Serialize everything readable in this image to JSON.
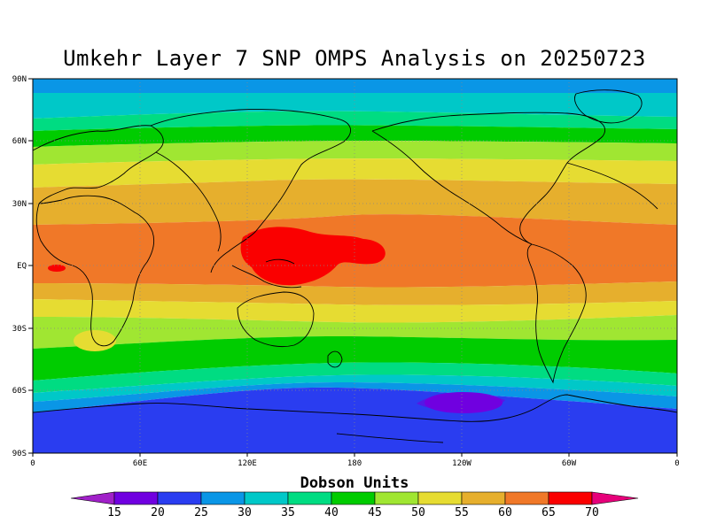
{
  "title": "Umkehr Layer 7 SNP OMPS Analysis on 20250723",
  "map": {
    "lat_ticks": [
      "90N",
      "60N",
      "30N",
      "EQ",
      "30S",
      "60S",
      "90S"
    ],
    "lon_ticks": [
      "0",
      "60E",
      "120E",
      "180",
      "120W",
      "60W",
      "0"
    ],
    "grid": true
  },
  "colorbar": {
    "label": "Dobson Units",
    "ticks": [
      "15",
      "20",
      "25",
      "30",
      "35",
      "40",
      "45",
      "50",
      "55",
      "60",
      "65",
      "70"
    ],
    "colors": [
      "#a020c8",
      "#7000e0",
      "#2a3df0",
      "#0a96e6",
      "#00c8c8",
      "#00dc82",
      "#00cc00",
      "#a0e632",
      "#e6dc32",
      "#e6af2d",
      "#f07828",
      "#fa0000",
      "#e6007a"
    ]
  }
}
